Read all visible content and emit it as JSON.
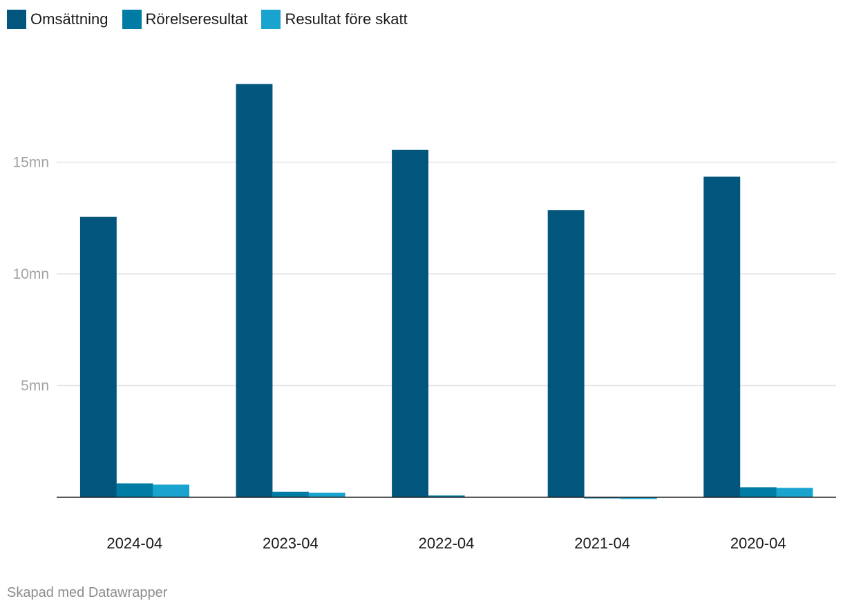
{
  "chart_data": {
    "type": "bar",
    "categories": [
      "2024-04",
      "2023-04",
      "2022-04",
      "2021-04",
      "2020-04"
    ],
    "series": [
      {
        "name": "Omsättning",
        "color": "#02557c",
        "values": [
          12.55,
          18.5,
          15.55,
          12.85,
          14.35
        ]
      },
      {
        "name": "Rörelseresultat",
        "color": "#007ca4",
        "values": [
          0.62,
          0.25,
          0.08,
          -0.05,
          0.45
        ]
      },
      {
        "name": "Resultat före skatt",
        "color": "#19a4cf",
        "values": [
          0.57,
          0.2,
          0.0,
          -0.08,
          0.42
        ]
      }
    ],
    "y_ticks": [
      {
        "value": 5,
        "label": "5mn"
      },
      {
        "value": 10,
        "label": "10mn"
      },
      {
        "value": 15,
        "label": "15mn"
      }
    ],
    "ylim": [
      0,
      20
    ],
    "grid": true,
    "legend_position": "top-left"
  },
  "credit": "Skapad med Datawrapper"
}
